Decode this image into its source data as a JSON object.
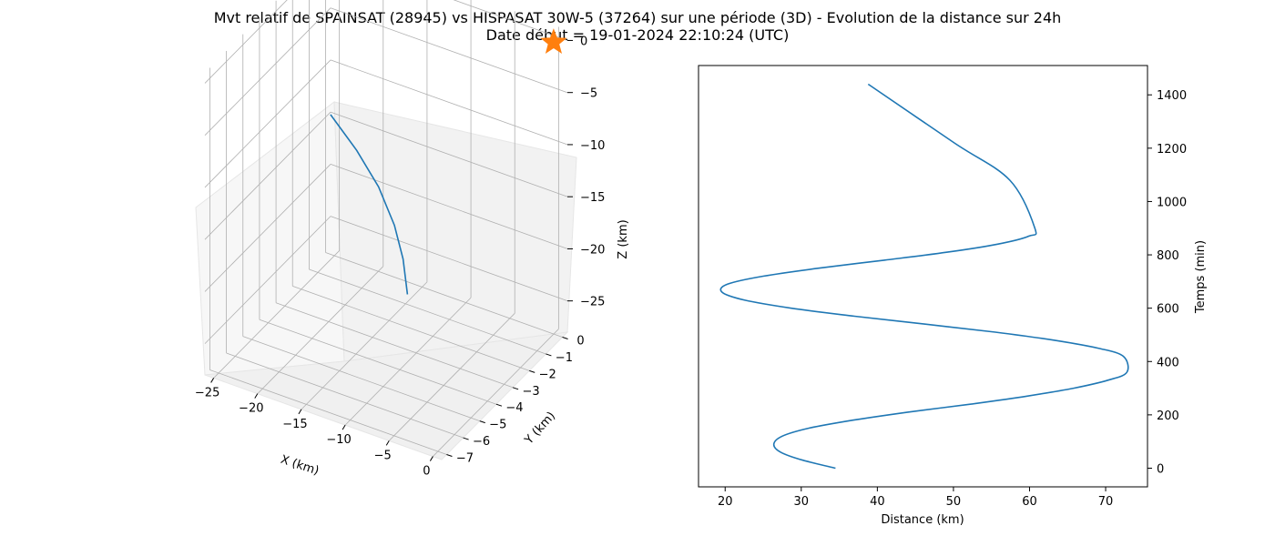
{
  "title_line1": "Mvt relatif de SPAINSAT (28945) vs HISPASAT 30W-5 (37264) sur une période (3D) - Evolution de la distance sur 24h",
  "title_line2": "Date début = 19-01-2024 22:10:24 (UTC)",
  "colors": {
    "series": "#1f77b4",
    "marker": "#ff7f0e",
    "pane": "#f2f2f2",
    "grid": "#b0b0b0"
  },
  "chart_data": [
    {
      "type": "line",
      "projection": "3d",
      "xlabel": "X (km)",
      "ylabel": "Y (km)",
      "zlabel": "Z (km)",
      "xlim": [
        -26,
        1
      ],
      "ylim": [
        -7.3,
        0.3
      ],
      "zlim": [
        -28,
        1
      ],
      "x_ticks": [
        -25,
        -20,
        -15,
        -10,
        -5,
        0
      ],
      "y_ticks": [
        0,
        -1,
        -2,
        -3,
        -4,
        -5,
        -6,
        -7
      ],
      "z_ticks": [
        0,
        -5,
        -10,
        -15,
        -20,
        -25
      ],
      "x_tick_labels": [
        "−25",
        "−20",
        "−15",
        "−10",
        "−5",
        "0"
      ],
      "y_tick_labels": [
        "0",
        "−1",
        "−2",
        "−3",
        "−4",
        "−5",
        "−6",
        "−7"
      ],
      "z_tick_labels": [
        "0",
        "−5",
        "−10",
        "−15",
        "−20",
        "−25"
      ],
      "series": [
        {
          "marker": "line",
          "x": [
            -24.5,
            -20,
            -16,
            -12.5,
            -10,
            -8
          ],
          "y": [
            -0.5,
            -1.3,
            -2.1,
            -3.0,
            -3.8,
            -4.6
          ],
          "z": [
            -13.5,
            -14.3,
            -15.3,
            -16.5,
            -17.7,
            -19.2
          ]
        },
        {
          "marker": "star",
          "x": [
            0
          ],
          "y": [
            0
          ],
          "z": [
            0
          ]
        }
      ],
      "grid": true
    },
    {
      "type": "line",
      "xlabel": "Distance (km)",
      "ylabel": "Temps (min)",
      "xlim": [
        16.5,
        75.5
      ],
      "ylim": [
        -70,
        1510
      ],
      "x_ticks": [
        20,
        30,
        40,
        50,
        60,
        70
      ],
      "y_ticks": [
        0,
        200,
        400,
        600,
        800,
        1000,
        1200,
        1400
      ],
      "x_tick_labels": [
        "20",
        "30",
        "40",
        "50",
        "60",
        "70"
      ],
      "y_tick_labels": [
        "0",
        "200",
        "400",
        "600",
        "800",
        "1000",
        "1200",
        "1400"
      ],
      "y_axis_side": "right",
      "grid": false,
      "series": [
        {
          "distance": [
            34.5,
            30.2,
            27.3,
            26.4,
            27.5,
            31.0,
            36.8,
            44.0,
            52.2,
            59.6,
            65.8,
            70.3,
            72.8,
            72.3,
            69.0,
            63.2,
            55.5,
            46.3,
            37.0,
            28.7,
            22.6,
            19.6,
            20.3,
            25.0,
            32.3,
            40.9,
            49.2,
            55.8,
            59.9,
            60.7,
            57.4,
            50.1,
            38.8
          ],
          "time": [
            0,
            30,
            60,
            90,
            120,
            150,
            180,
            210,
            240,
            270,
            300,
            330,
            360,
            420,
            450,
            480,
            510,
            540,
            570,
            600,
            630,
            660,
            690,
            720,
            750,
            780,
            810,
            840,
            870,
            900,
            1080,
            1220,
            1440
          ]
        }
      ]
    }
  ]
}
